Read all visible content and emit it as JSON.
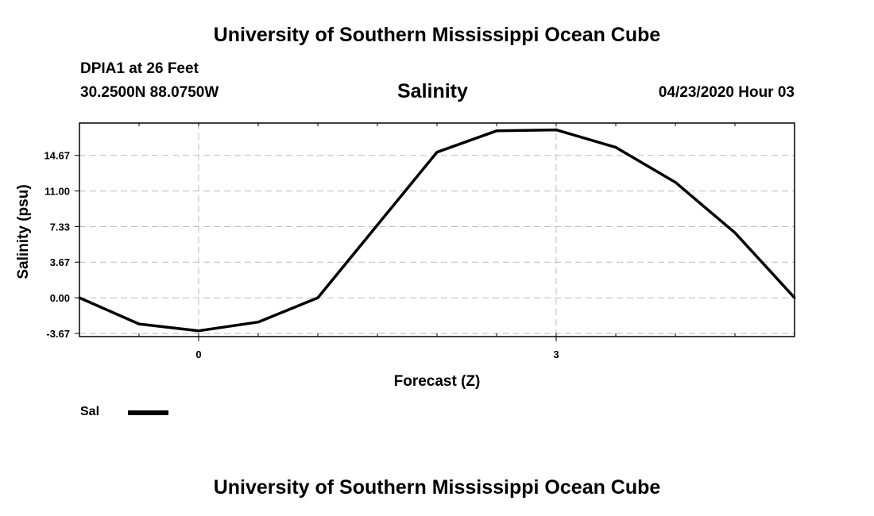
{
  "header": {
    "title": "University of Southern Mississippi Ocean Cube",
    "station": "DPIA1 at 26 Feet",
    "coordinates": "30.2500N 88.0750W",
    "valid_time": "04/23/2020 Hour 03"
  },
  "footer": {
    "title": "University of Southern Mississippi Ocean Cube"
  },
  "legend": {
    "label": "Sal",
    "color": "#000000"
  },
  "chart_data": {
    "type": "line",
    "title": "Salinity",
    "xlabel": "Forecast (Z)",
    "ylabel": "Salinity (psu)",
    "xlim": [
      -1,
      5
    ],
    "ylim": [
      -4,
      18
    ],
    "x_ticks": [
      0,
      3
    ],
    "x_tick_labels": [
      "0",
      "3"
    ],
    "y_ticks": [
      -3.67,
      0,
      3.67,
      7.33,
      11,
      14.67
    ],
    "y_tick_labels": [
      "-3.67",
      "0.00",
      "3.67",
      "7.33",
      "11.00",
      "14.67"
    ],
    "grid": true,
    "series": [
      {
        "name": "Sal",
        "color": "#000000",
        "x": [
          -1,
          -0.5,
          0,
          0.5,
          1,
          1.5,
          2,
          2.5,
          3,
          3.5,
          4,
          4.5,
          5
        ],
        "y": [
          0,
          -2.7,
          -3.4,
          -2.5,
          0,
          7.5,
          15,
          17.2,
          17.3,
          15.5,
          11.9,
          6.7,
          0
        ]
      }
    ]
  }
}
